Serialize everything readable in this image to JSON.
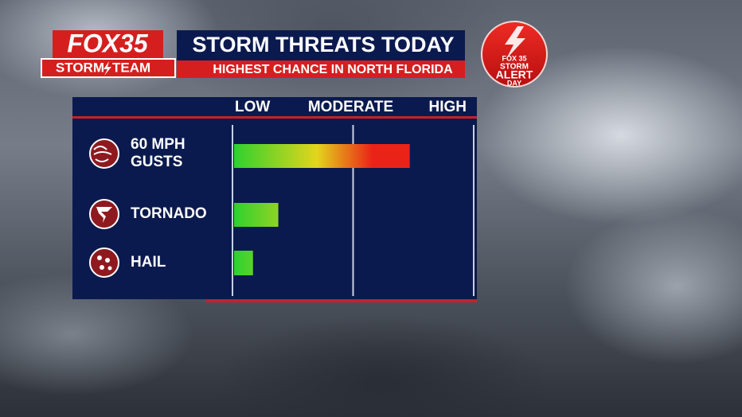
{
  "chart_data": {
    "type": "bar",
    "orientation": "horizontal",
    "brand": {
      "logo": "FOX35",
      "team_left": "STORM",
      "team_right": "TEAM"
    },
    "badge": {
      "station": "FOX 35",
      "line1": "STORM",
      "line2": "ALERT",
      "line3": "DAY"
    },
    "title": "STORM THREATS TODAY",
    "subtitle": "HIGHEST CHANCE IN NORTH FLORIDA",
    "categories": [
      "60 MPH GUSTS",
      "TORNADO",
      "HAIL"
    ],
    "values": [
      1.47,
      0.38,
      0.17
    ],
    "xlim": [
      0,
      2
    ],
    "xticks": [
      {
        "value": 0,
        "label": "LOW"
      },
      {
        "value": 1,
        "label": "MODERATE"
      },
      {
        "value": 2,
        "label": "HIGH"
      }
    ],
    "grid": true,
    "colors": [
      "#2bd12e",
      "#e3d51c",
      "#ea2318"
    ]
  }
}
